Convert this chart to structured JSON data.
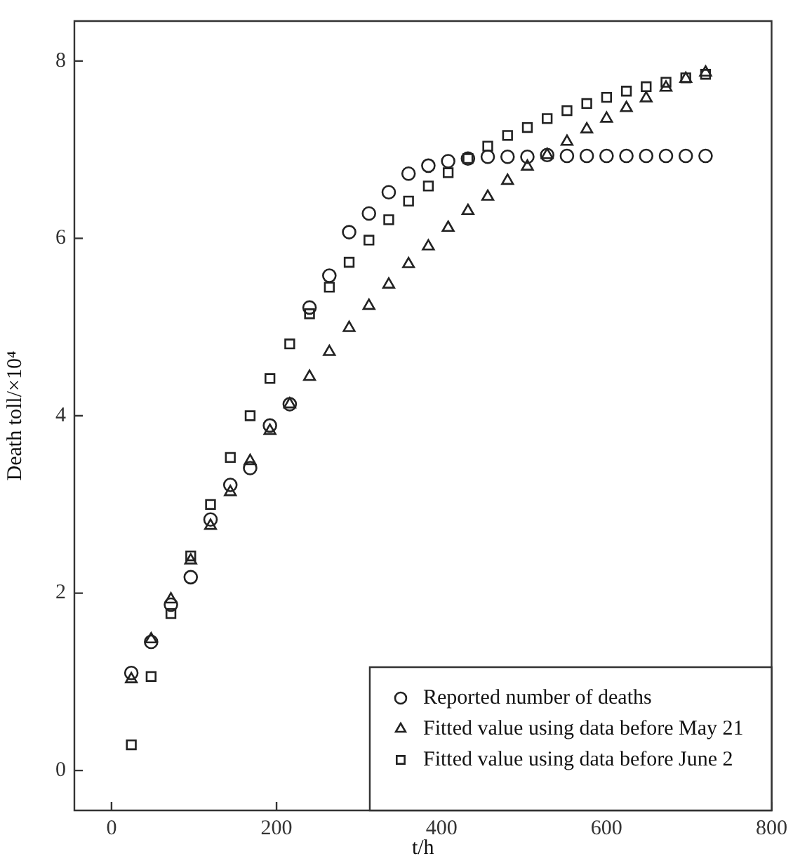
{
  "chart_data": {
    "type": "scatter",
    "xlabel": "t/h",
    "ylabel": "Death toll/×10⁴",
    "x": [
      24,
      48,
      72,
      96,
      120,
      144,
      168,
      192,
      216,
      240,
      264,
      288,
      312,
      336,
      360,
      384,
      408,
      432,
      456,
      480,
      504,
      528,
      552,
      576,
      600,
      624,
      648,
      672,
      696,
      720
    ],
    "series": [
      {
        "name": "Reported number of deaths",
        "color": "#222222",
        "marker": "circle",
        "values": [
          1.1,
          1.45,
          1.87,
          2.18,
          2.83,
          3.22,
          3.41,
          3.89,
          4.13,
          5.22,
          5.58,
          6.07,
          6.28,
          6.52,
          6.73,
          6.82,
          6.87,
          6.9,
          6.92,
          6.92,
          6.92,
          6.94,
          6.93,
          6.93,
          6.93,
          6.93,
          6.93,
          6.93,
          6.93,
          6.93
        ]
      },
      {
        "name": "Fitted value using data before May 21",
        "color": "#222222",
        "marker": "triangle",
        "values": [
          1.03,
          1.48,
          1.93,
          2.37,
          2.76,
          3.14,
          3.49,
          3.83,
          4.13,
          4.44,
          4.72,
          4.99,
          5.24,
          5.48,
          5.71,
          5.91,
          6.12,
          6.31,
          6.47,
          6.65,
          6.81,
          6.94,
          7.09,
          7.23,
          7.35,
          7.47,
          7.58,
          7.7,
          7.8,
          7.87
        ]
      },
      {
        "name": "Fitted value using data before June 2",
        "color": "#222222",
        "marker": "square",
        "values": [
          0.29,
          1.06,
          1.77,
          2.42,
          3.0,
          3.53,
          4.0,
          4.42,
          4.81,
          5.15,
          5.45,
          5.73,
          5.98,
          6.21,
          6.42,
          6.59,
          6.74,
          6.9,
          7.04,
          7.16,
          7.25,
          7.35,
          7.44,
          7.52,
          7.59,
          7.66,
          7.71,
          7.76,
          7.81,
          7.85
        ]
      }
    ],
    "xlim": [
      -45,
      800
    ],
    "xticks": [
      0,
      200,
      400,
      600,
      800
    ],
    "ylim": [
      -0.45,
      8.45
    ],
    "yticks": [
      0,
      2,
      4,
      6,
      8
    ],
    "grid": false,
    "legend": "bottom right"
  }
}
